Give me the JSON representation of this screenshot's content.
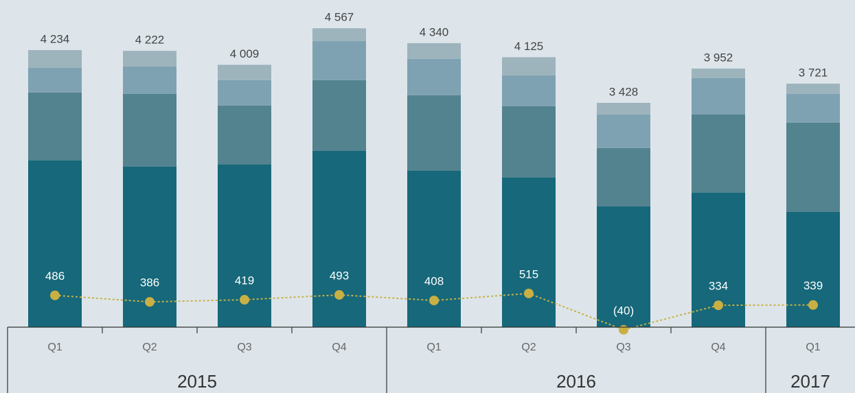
{
  "chart_data": {
    "type": "stacked-bar-line",
    "categories": [
      "Q1",
      "Q2",
      "Q3",
      "Q4",
      "Q1",
      "Q2",
      "Q3",
      "Q4",
      "Q1"
    ],
    "groups": [
      {
        "label": "2015",
        "count": 4
      },
      {
        "label": "2016",
        "count": 4
      },
      {
        "label": "2017",
        "count": 1
      }
    ],
    "ylim": [
      0,
      4800
    ],
    "series": [
      {
        "color": "#16687a",
        "values": [
          2547,
          2453,
          2484,
          2694,
          2390,
          2285,
          1845,
          2055,
          1761
        ]
      },
      {
        "color": "#52838f",
        "values": [
          1038,
          1111,
          902,
          1080,
          1153,
          1090,
          891,
          1194,
          1363
        ]
      },
      {
        "color": "#7fa2b2",
        "values": [
          377,
          419,
          388,
          597,
          556,
          472,
          514,
          556,
          440
        ]
      },
      {
        "color": "#9db4bd",
        "values": [
          272,
          239,
          235,
          196,
          241,
          278,
          178,
          147,
          157
        ]
      }
    ],
    "totals": [
      4234,
      4222,
      4009,
      4567,
      4340,
      4125,
      3428,
      3952,
      3721
    ],
    "total_labels": [
      "4 234",
      "4 222",
      "4 009",
      "4 567",
      "4 340",
      "4 125",
      "3 428",
      "3 952",
      "3 721"
    ],
    "line": {
      "color": "#c9b044",
      "values": [
        486,
        386,
        419,
        493,
        408,
        515,
        -40,
        334,
        339
      ],
      "value_labels": [
        "486",
        "386",
        "419",
        "493",
        "408",
        "515",
        "(40)",
        "334",
        "339"
      ]
    }
  }
}
